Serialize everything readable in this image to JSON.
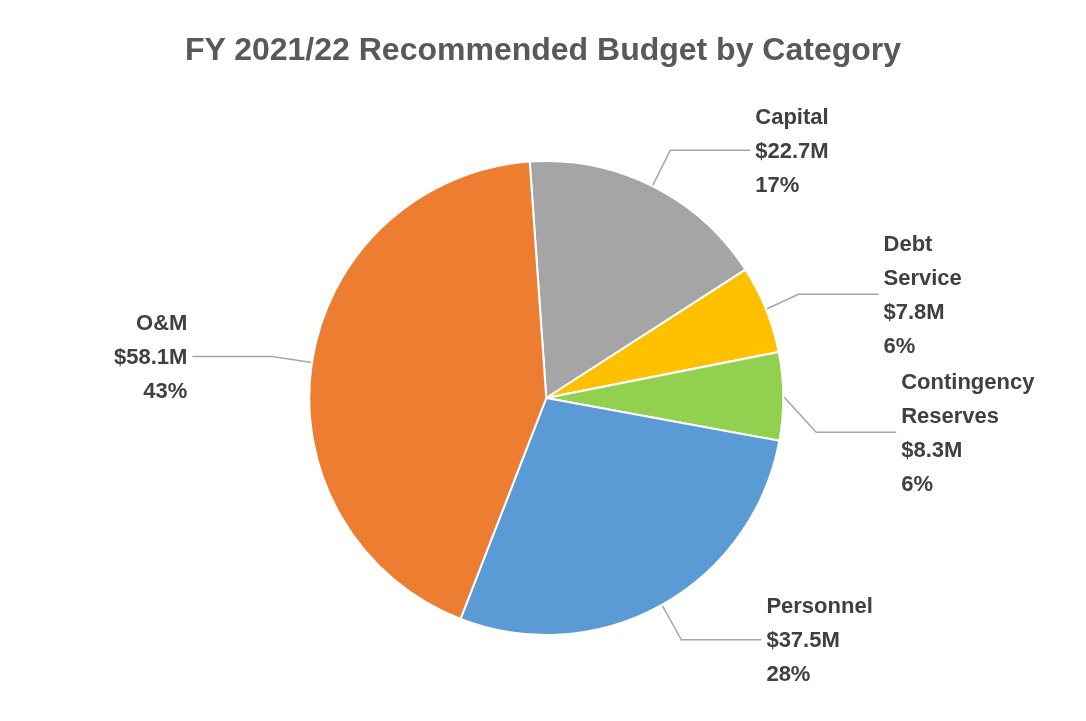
{
  "chart_data": {
    "type": "pie",
    "title": "FY 2021/22 Recommended Budget by Category",
    "categories": [
      "Capital",
      "Debt Service",
      "Contingency Reserves",
      "Personnel",
      "O&M"
    ],
    "values": [
      17,
      6,
      6,
      28,
      43
    ],
    "colors": [
      "#a5a5a5",
      "#ffc000",
      "#92d050",
      "#5b9bd5",
      "#ed7d31"
    ],
    "value_labels": [
      "$22.7M\n17%",
      "$7.8M\n6%",
      "$8.3M\n6%",
      "$37.5M\n28%",
      "$58.1M\n43%"
    ]
  }
}
